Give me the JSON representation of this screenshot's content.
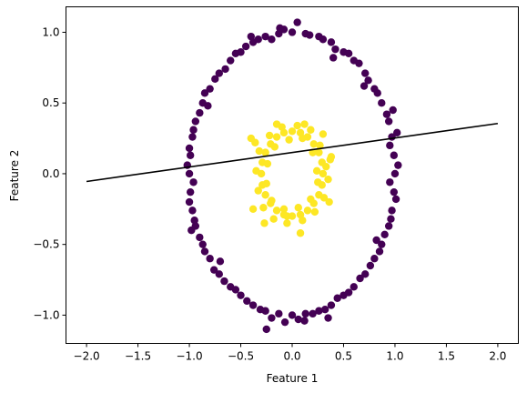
{
  "chart_data": {
    "type": "scatter",
    "title": "",
    "xlabel": "Feature 1",
    "ylabel": "Feature 2",
    "xlim": [
      -2.2,
      2.2
    ],
    "ylim": [
      -1.2,
      1.18
    ],
    "x_ticks": [
      -2.0,
      -1.5,
      -1.0,
      -0.5,
      0.0,
      0.5,
      1.0,
      1.5,
      2.0
    ],
    "x_tick_labels": [
      "−2.0",
      "−1.5",
      "−1.0",
      "−0.5",
      "0.0",
      "0.5",
      "1.0",
      "1.5",
      "2.0"
    ],
    "y_ticks": [
      -1.0,
      -0.5,
      0.0,
      0.5,
      1.0
    ],
    "y_tick_labels": [
      "−1.0",
      "−0.5",
      "0.0",
      "0.5",
      "1.0"
    ],
    "grid": false,
    "legend": "none",
    "series": [
      {
        "color": "#440154",
        "description": "outer ring, radius about 1",
        "points": [
          [
            1.0,
            0.0
          ],
          [
            0.99,
            0.13
          ],
          [
            0.97,
            0.26
          ],
          [
            0.94,
            0.37
          ],
          [
            0.87,
            0.5
          ],
          [
            0.8,
            0.6
          ],
          [
            0.71,
            0.71
          ],
          [
            0.6,
            0.8
          ],
          [
            0.5,
            0.86
          ],
          [
            0.38,
            0.93
          ],
          [
            0.26,
            0.97
          ],
          [
            0.13,
            0.99
          ],
          [
            0.0,
            1.0
          ],
          [
            -0.13,
            0.99
          ],
          [
            -0.26,
            0.97
          ],
          [
            -0.38,
            0.93
          ],
          [
            -0.5,
            0.86
          ],
          [
            -0.6,
            0.8
          ],
          [
            -0.71,
            0.71
          ],
          [
            -0.8,
            0.6
          ],
          [
            -0.87,
            0.5
          ],
          [
            -0.94,
            0.37
          ],
          [
            -0.97,
            0.26
          ],
          [
            -0.99,
            0.13
          ],
          [
            -1.0,
            0.0
          ],
          [
            -0.99,
            -0.13
          ],
          [
            -0.97,
            -0.26
          ],
          [
            -0.94,
            -0.37
          ],
          [
            -0.87,
            -0.5
          ],
          [
            -0.8,
            -0.6
          ],
          [
            -0.71,
            -0.71
          ],
          [
            -0.6,
            -0.8
          ],
          [
            -0.5,
            -0.86
          ],
          [
            -0.38,
            -0.93
          ],
          [
            -0.26,
            -0.97
          ],
          [
            -0.13,
            -0.99
          ],
          [
            0.0,
            -1.0
          ],
          [
            0.13,
            -0.99
          ],
          [
            0.26,
            -0.97
          ],
          [
            0.38,
            -0.93
          ],
          [
            0.5,
            -0.86
          ],
          [
            0.6,
            -0.8
          ],
          [
            0.71,
            -0.71
          ],
          [
            0.8,
            -0.6
          ],
          [
            0.87,
            -0.5
          ],
          [
            0.94,
            -0.37
          ],
          [
            0.97,
            -0.26
          ],
          [
            0.99,
            -0.13
          ],
          [
            1.03,
            0.06
          ],
          [
            0.95,
            0.2
          ],
          [
            0.92,
            0.42
          ],
          [
            0.83,
            0.57
          ],
          [
            0.74,
            0.66
          ],
          [
            0.65,
            0.78
          ],
          [
            0.55,
            0.85
          ],
          [
            0.42,
            0.88
          ],
          [
            0.3,
            0.95
          ],
          [
            0.17,
            0.98
          ],
          [
            0.05,
            1.07
          ],
          [
            -0.08,
            1.02
          ],
          [
            -0.2,
            0.95
          ],
          [
            -0.33,
            0.95
          ],
          [
            -0.45,
            0.9
          ],
          [
            -0.55,
            0.85
          ],
          [
            -0.65,
            0.74
          ],
          [
            -0.75,
            0.67
          ],
          [
            -0.85,
            0.57
          ],
          [
            -0.9,
            0.43
          ],
          [
            -0.96,
            0.31
          ],
          [
            -1.0,
            0.18
          ],
          [
            -1.02,
            0.06
          ],
          [
            -0.96,
            -0.06
          ],
          [
            -1.0,
            -0.2
          ],
          [
            -0.95,
            -0.33
          ],
          [
            -0.9,
            -0.45
          ],
          [
            -0.85,
            -0.55
          ],
          [
            -0.76,
            -0.68
          ],
          [
            -0.66,
            -0.76
          ],
          [
            -0.55,
            -0.82
          ],
          [
            -0.44,
            -0.9
          ],
          [
            -0.31,
            -0.96
          ],
          [
            -0.2,
            -1.02
          ],
          [
            -0.07,
            -1.05
          ],
          [
            0.06,
            -1.03
          ],
          [
            0.2,
            -0.99
          ],
          [
            0.32,
            -0.96
          ],
          [
            0.44,
            -0.88
          ],
          [
            0.55,
            -0.84
          ],
          [
            0.66,
            -0.74
          ],
          [
            0.76,
            -0.65
          ],
          [
            0.85,
            -0.55
          ],
          [
            0.9,
            -0.43
          ],
          [
            0.96,
            -0.32
          ],
          [
            1.01,
            -0.18
          ],
          [
            0.95,
            -0.06
          ],
          [
            1.02,
            0.29
          ],
          [
            0.98,
            0.45
          ],
          [
            -0.98,
            -0.4
          ],
          [
            -0.25,
            -1.1
          ],
          [
            0.35,
            -1.02
          ],
          [
            -0.7,
            -0.62
          ],
          [
            0.7,
            0.62
          ],
          [
            -0.4,
            0.97
          ],
          [
            0.4,
            0.82
          ],
          [
            -0.82,
            0.48
          ],
          [
            0.82,
            -0.47
          ],
          [
            -0.12,
            1.03
          ],
          [
            0.12,
            -1.04
          ]
        ]
      },
      {
        "color": "#fde725",
        "description": "inner ring, radius about 0.3",
        "points": [
          [
            0.3,
            0.0
          ],
          [
            0.29,
            0.08
          ],
          [
            0.26,
            0.15
          ],
          [
            0.21,
            0.21
          ],
          [
            0.15,
            0.26
          ],
          [
            0.08,
            0.29
          ],
          [
            0.0,
            0.3
          ],
          [
            -0.08,
            0.29
          ],
          [
            -0.15,
            0.26
          ],
          [
            -0.21,
            0.21
          ],
          [
            -0.26,
            0.15
          ],
          [
            -0.29,
            0.08
          ],
          [
            -0.3,
            0.0
          ],
          [
            -0.29,
            -0.08
          ],
          [
            -0.26,
            -0.15
          ],
          [
            -0.21,
            -0.21
          ],
          [
            -0.15,
            -0.26
          ],
          [
            -0.08,
            -0.29
          ],
          [
            0.0,
            -0.3
          ],
          [
            0.08,
            -0.29
          ],
          [
            0.15,
            -0.26
          ],
          [
            0.21,
            -0.21
          ],
          [
            0.26,
            -0.15
          ],
          [
            0.29,
            -0.08
          ],
          [
            0.33,
            0.05
          ],
          [
            0.27,
            0.2
          ],
          [
            0.18,
            0.31
          ],
          [
            0.05,
            0.34
          ],
          [
            -0.1,
            0.33
          ],
          [
            -0.22,
            0.27
          ],
          [
            -0.32,
            0.16
          ],
          [
            -0.35,
            0.02
          ],
          [
            -0.33,
            -0.12
          ],
          [
            -0.28,
            -0.24
          ],
          [
            -0.18,
            -0.32
          ],
          [
            -0.05,
            -0.35
          ],
          [
            0.1,
            -0.33
          ],
          [
            0.22,
            -0.27
          ],
          [
            0.31,
            -0.17
          ],
          [
            0.35,
            -0.04
          ],
          [
            0.24,
            0.02
          ],
          [
            0.2,
            0.15
          ],
          [
            0.1,
            0.25
          ],
          [
            -0.03,
            0.24
          ],
          [
            -0.17,
            0.19
          ],
          [
            -0.24,
            0.07
          ],
          [
            -0.25,
            -0.07
          ],
          [
            -0.2,
            -0.19
          ],
          [
            -0.08,
            -0.25
          ],
          [
            0.06,
            -0.24
          ],
          [
            0.18,
            -0.18
          ],
          [
            0.25,
            -0.06
          ],
          [
            0.38,
            0.12
          ],
          [
            0.36,
            -0.2
          ],
          [
            -0.36,
            0.22
          ],
          [
            -0.38,
            -0.25
          ],
          [
            -0.27,
            -0.35
          ],
          [
            0.08,
            -0.42
          ],
          [
            -0.4,
            0.25
          ],
          [
            0.3,
            0.28
          ],
          [
            0.12,
            0.35
          ],
          [
            -0.15,
            0.35
          ],
          [
            0.37,
            0.1
          ],
          [
            -0.05,
            -0.3
          ]
        ]
      }
    ],
    "line": {
      "color": "#000000",
      "description": "decision boundary line",
      "x": [
        -2.0,
        2.0
      ],
      "y": [
        -0.055,
        0.355
      ]
    }
  }
}
